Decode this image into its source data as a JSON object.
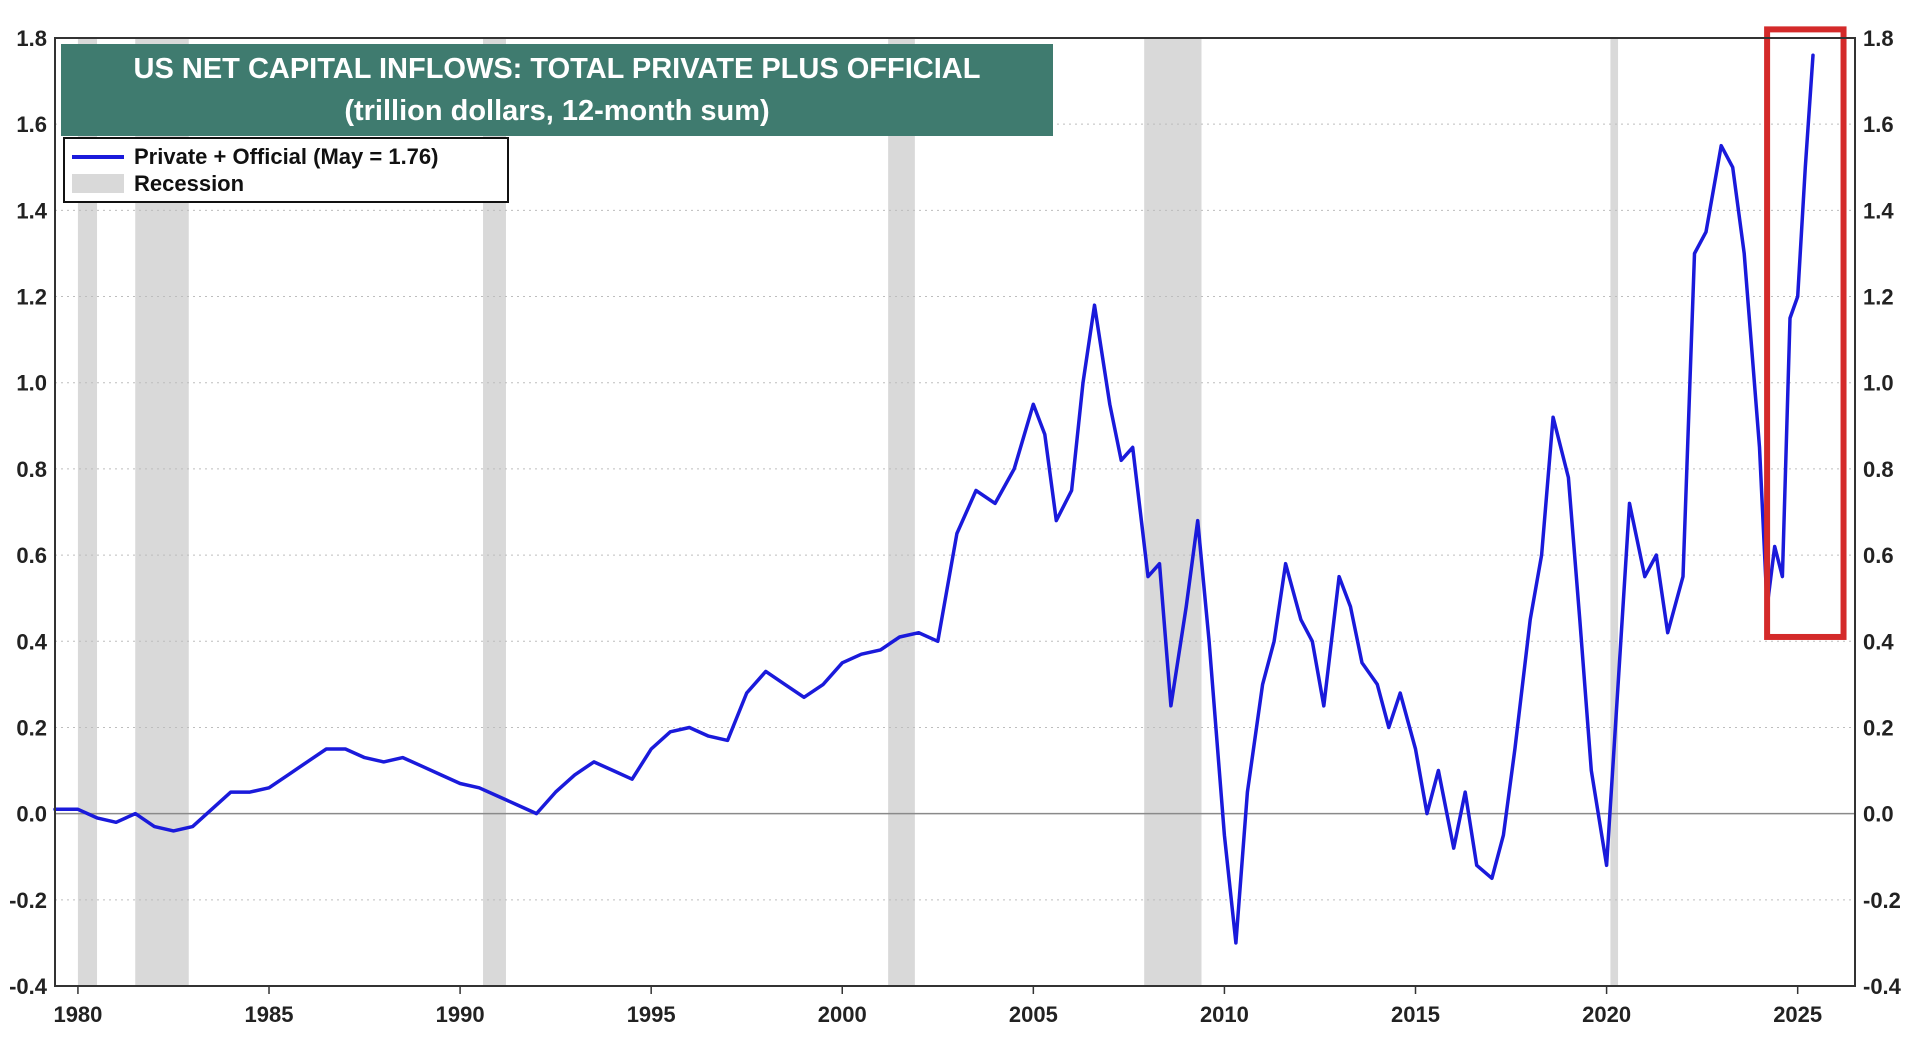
{
  "chart_data": {
    "type": "line",
    "title": "US NET CAPITAL INFLOWS: TOTAL PRIVATE PLUS OFFICIAL",
    "subtitle": "(trillion dollars, 12-month sum)",
    "xlabel": "",
    "ylabel": "",
    "xlim": [
      1979.4,
      2026.5
    ],
    "ylim": [
      -0.4,
      1.8
    ],
    "x_ticks": [
      "1980",
      "1985",
      "1990",
      "1995",
      "2000",
      "2005",
      "2010",
      "2015",
      "2020",
      "2025"
    ],
    "y_ticks": [
      "-0.4",
      "-0.2",
      "0.0",
      "0.2",
      "0.4",
      "0.6",
      "0.8",
      "1.0",
      "1.2",
      "1.4",
      "1.6",
      "1.8"
    ],
    "grid": true,
    "legend_position": "top-left",
    "legend": [
      {
        "label": "Private + Official (May = 1.76)",
        "kind": "line",
        "color": "#1a1adb"
      },
      {
        "label": "Recession",
        "kind": "band",
        "color": "#d9d9d9"
      }
    ],
    "recessions": [
      [
        1980.0,
        1980.5
      ],
      [
        1981.5,
        1982.9
      ],
      [
        1990.6,
        1991.2
      ],
      [
        2001.2,
        2001.9
      ],
      [
        2007.9,
        2009.4
      ],
      [
        2020.1,
        2020.3
      ]
    ],
    "highlight_box": {
      "x_range": [
        2024.2,
        2026.2
      ],
      "y_range": [
        0.41,
        1.82
      ],
      "color": "#d42a2a"
    },
    "series": [
      {
        "name": "Private + Official",
        "color": "#1a1adb",
        "x": [
          1979.4,
          1980.0,
          1980.5,
          1981.0,
          1981.5,
          1982.0,
          1982.5,
          1983.0,
          1983.5,
          1984.0,
          1984.5,
          1985.0,
          1985.5,
          1986.0,
          1986.5,
          1987.0,
          1987.5,
          1988.0,
          1988.5,
          1989.0,
          1989.5,
          1990.0,
          1990.5,
          1991.0,
          1991.5,
          1992.0,
          1992.5,
          1993.0,
          1993.5,
          1994.0,
          1994.5,
          1995.0,
          1995.5,
          1996.0,
          1996.5,
          1997.0,
          1997.5,
          1998.0,
          1998.5,
          1999.0,
          1999.5,
          2000.0,
          2000.5,
          2001.0,
          2001.5,
          2002.0,
          2002.5,
          2003.0,
          2003.5,
          2004.0,
          2004.5,
          2005.0,
          2005.3,
          2005.6,
          2006.0,
          2006.3,
          2006.6,
          2007.0,
          2007.3,
          2007.6,
          2008.0,
          2008.3,
          2008.6,
          2009.0,
          2009.3,
          2009.6,
          2010.0,
          2010.3,
          2010.6,
          2011.0,
          2011.3,
          2011.6,
          2012.0,
          2012.3,
          2012.6,
          2013.0,
          2013.3,
          2013.6,
          2014.0,
          2014.3,
          2014.6,
          2015.0,
          2015.3,
          2015.6,
          2016.0,
          2016.3,
          2016.6,
          2017.0,
          2017.3,
          2017.6,
          2018.0,
          2018.3,
          2018.6,
          2019.0,
          2019.3,
          2019.6,
          2020.0,
          2020.3,
          2020.6,
          2021.0,
          2021.3,
          2021.6,
          2022.0,
          2022.3,
          2022.6,
          2023.0,
          2023.3,
          2023.6,
          2024.0,
          2024.2,
          2024.4,
          2024.6,
          2024.8,
          2025.0,
          2025.2,
          2025.4
        ],
        "values": [
          0.01,
          0.01,
          -0.01,
          -0.02,
          0.0,
          -0.03,
          -0.04,
          -0.03,
          0.01,
          0.05,
          0.05,
          0.06,
          0.09,
          0.12,
          0.15,
          0.15,
          0.13,
          0.12,
          0.13,
          0.11,
          0.09,
          0.07,
          0.06,
          0.04,
          0.02,
          0.0,
          0.05,
          0.09,
          0.12,
          0.1,
          0.08,
          0.15,
          0.19,
          0.2,
          0.18,
          0.17,
          0.28,
          0.33,
          0.3,
          0.27,
          0.3,
          0.35,
          0.37,
          0.38,
          0.41,
          0.42,
          0.4,
          0.65,
          0.75,
          0.72,
          0.8,
          0.95,
          0.88,
          0.68,
          0.75,
          1.0,
          1.18,
          0.95,
          0.82,
          0.85,
          0.55,
          0.58,
          0.25,
          0.48,
          0.68,
          0.4,
          -0.05,
          -0.3,
          0.05,
          0.3,
          0.4,
          0.58,
          0.45,
          0.4,
          0.25,
          0.55,
          0.48,
          0.35,
          0.3,
          0.2,
          0.28,
          0.15,
          0.0,
          0.1,
          -0.08,
          0.05,
          -0.12,
          -0.15,
          -0.05,
          0.15,
          0.45,
          0.6,
          0.92,
          0.78,
          0.45,
          0.1,
          -0.12,
          0.3,
          0.72,
          0.55,
          0.6,
          0.42,
          0.55,
          1.3,
          1.35,
          1.55,
          1.5,
          1.3,
          0.85,
          0.48,
          0.62,
          0.55,
          1.15,
          1.2,
          1.5,
          1.76
        ]
      }
    ]
  }
}
